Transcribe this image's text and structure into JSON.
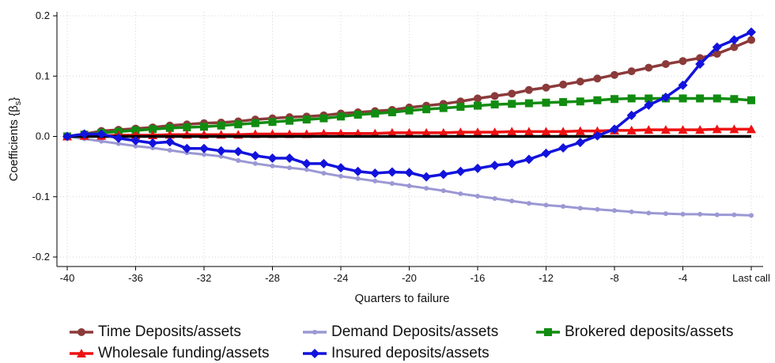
{
  "chart_data": {
    "type": "line",
    "title": "",
    "xlabel": "Quarters to failure",
    "ylabel": "Coefficients {β",
    "ylabel_sub": "s",
    "ylabel_close": "}",
    "x": [
      -40,
      -39,
      -38,
      -37,
      -36,
      -35,
      -34,
      -33,
      -32,
      -31,
      -30,
      -29,
      -28,
      -27,
      -26,
      -25,
      -24,
      -23,
      -22,
      -21,
      -20,
      -19,
      -18,
      -17,
      -16,
      -15,
      -14,
      -13,
      -12,
      -11,
      -10,
      -9,
      -8,
      -7,
      -6,
      -5,
      -4,
      -3,
      -2,
      -1,
      0
    ],
    "xticks": [
      -40,
      -36,
      -32,
      -28,
      -24,
      -20,
      -16,
      -12,
      -8,
      -4,
      0
    ],
    "xtick_labels": [
      "-40",
      "-36",
      "-32",
      "-28",
      "-24",
      "-20",
      "-16",
      "-12",
      "-8",
      "-4",
      "Last call"
    ],
    "xlim": [
      -40.8,
      0.5
    ],
    "ylim": [
      -0.2,
      0.2
    ],
    "yticks": [
      -0.2,
      -0.1,
      0.0,
      0.1,
      0.2
    ],
    "ytick_labels": [
      "-0.2",
      "-0.1",
      "0.0",
      "0.1",
      "0.2"
    ],
    "grid": true,
    "legend_position": "bottom",
    "zero_line_color": "#000000",
    "series": [
      {
        "name": "Time Deposits/assets",
        "color": "#8b3a3a",
        "marker": "circle",
        "values": [
          0.0,
          0.004,
          0.009,
          0.011,
          0.013,
          0.015,
          0.018,
          0.02,
          0.022,
          0.023,
          0.025,
          0.028,
          0.03,
          0.032,
          0.033,
          0.035,
          0.038,
          0.04,
          0.042,
          0.044,
          0.048,
          0.051,
          0.054,
          0.058,
          0.063,
          0.067,
          0.071,
          0.077,
          0.081,
          0.086,
          0.091,
          0.096,
          0.102,
          0.108,
          0.114,
          0.12,
          0.125,
          0.13,
          0.137,
          0.148,
          0.16
        ]
      },
      {
        "name": "Demand Deposits/assets",
        "color": "#9b98d4",
        "marker": "circle-small",
        "values": [
          0.0,
          -0.004,
          -0.008,
          -0.012,
          -0.016,
          -0.019,
          -0.023,
          -0.027,
          -0.03,
          -0.033,
          -0.04,
          -0.045,
          -0.049,
          -0.052,
          -0.055,
          -0.061,
          -0.066,
          -0.07,
          -0.074,
          -0.078,
          -0.082,
          -0.086,
          -0.09,
          -0.095,
          -0.099,
          -0.103,
          -0.107,
          -0.111,
          -0.114,
          -0.116,
          -0.119,
          -0.121,
          -0.123,
          -0.125,
          -0.127,
          -0.128,
          -0.129,
          -0.129,
          -0.13,
          -0.13,
          -0.131
        ]
      },
      {
        "name": "Brokered deposits/assets",
        "color": "#118c11",
        "marker": "square",
        "values": [
          0.0,
          0.003,
          0.006,
          0.008,
          0.01,
          0.012,
          0.014,
          0.015,
          0.016,
          0.018,
          0.02,
          0.022,
          0.024,
          0.026,
          0.028,
          0.03,
          0.033,
          0.036,
          0.038,
          0.04,
          0.043,
          0.045,
          0.047,
          0.049,
          0.051,
          0.053,
          0.054,
          0.055,
          0.056,
          0.057,
          0.058,
          0.06,
          0.062,
          0.063,
          0.063,
          0.063,
          0.063,
          0.063,
          0.063,
          0.062,
          0.06
        ]
      },
      {
        "name": "Wholesale funding/assets",
        "color": "#ee1111",
        "marker": "triangle",
        "values": [
          0.0,
          0.001,
          0.001,
          0.002,
          0.002,
          0.002,
          0.003,
          0.003,
          0.003,
          0.003,
          0.003,
          0.004,
          0.004,
          0.004,
          0.004,
          0.005,
          0.005,
          0.005,
          0.005,
          0.006,
          0.006,
          0.006,
          0.006,
          0.007,
          0.007,
          0.007,
          0.008,
          0.008,
          0.008,
          0.008,
          0.009,
          0.009,
          0.01,
          0.01,
          0.011,
          0.011,
          0.011,
          0.011,
          0.012,
          0.012,
          0.012
        ]
      },
      {
        "name": "Insured deposits/assets",
        "color": "#1212dd",
        "marker": "diamond",
        "values": [
          0.0,
          0.004,
          0.004,
          -0.003,
          -0.007,
          -0.011,
          -0.009,
          -0.02,
          -0.02,
          -0.024,
          -0.025,
          -0.032,
          -0.036,
          -0.036,
          -0.045,
          -0.045,
          -0.052,
          -0.058,
          -0.061,
          -0.059,
          -0.06,
          -0.067,
          -0.063,
          -0.058,
          -0.053,
          -0.048,
          -0.045,
          -0.038,
          -0.028,
          -0.019,
          -0.01,
          0.001,
          0.012,
          0.035,
          0.052,
          0.065,
          0.085,
          0.12,
          0.148,
          0.16,
          0.173
        ]
      }
    ]
  }
}
